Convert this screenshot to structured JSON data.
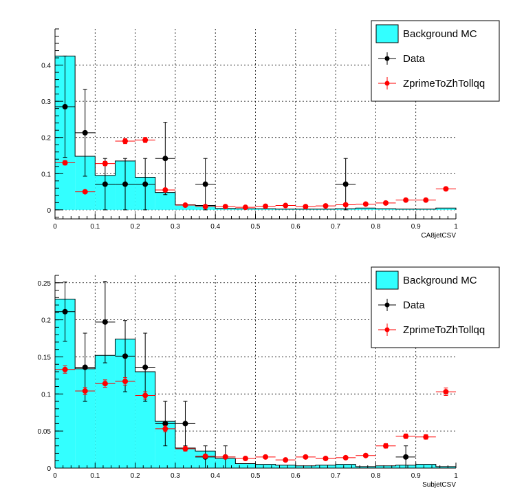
{
  "chart_data": [
    {
      "type": "histogram",
      "xlabel": "CA8jetCSV",
      "ylabel": "",
      "xlim": [
        0,
        1
      ],
      "ylim": [
        -0.025,
        0.5
      ],
      "x_ticks": [
        0,
        0.1,
        0.2,
        0.3,
        0.4,
        0.5,
        0.6,
        0.7,
        0.8,
        0.9,
        1
      ],
      "x_tick_labels": [
        "0",
        "0.1",
        "0.2",
        "0.3",
        "0.4",
        "0.5",
        "0.6",
        "0.7",
        "0.8",
        "0.9",
        "1"
      ],
      "y_ticks": [
        0,
        0.1,
        0.2,
        0.3,
        0.4
      ],
      "y_tick_labels": [
        "0",
        "0.1",
        "0.2",
        "0.3",
        "0.4"
      ],
      "grid": true,
      "legend_position": "top-right",
      "bin_edges": [
        0,
        0.05,
        0.1,
        0.15,
        0.2,
        0.25,
        0.3,
        0.35,
        0.4,
        0.45,
        0.5,
        0.55,
        0.6,
        0.65,
        0.7,
        0.75,
        0.8,
        0.85,
        0.9,
        0.95,
        1.0
      ],
      "series": [
        {
          "name": "Background MC",
          "kind": "filled-histogram",
          "color": "#33ffff",
          "values": [
            0.425,
            0.148,
            0.095,
            0.135,
            0.09,
            0.048,
            0.014,
            0.012,
            0.004,
            0.003,
            0.003,
            0.002,
            0.002,
            0.002,
            0.003,
            0.005,
            0.003,
            0.002,
            0.002,
            0.005
          ]
        },
        {
          "name": "Data",
          "kind": "points",
          "color": "#000000",
          "x": [
            0.025,
            0.075,
            0.125,
            0.175,
            0.225,
            0.275,
            0.375,
            0.725
          ],
          "y": [
            0.285,
            0.213,
            0.071,
            0.071,
            0.071,
            0.142,
            0.071,
            0.071
          ],
          "yerr": [
            0.14,
            0.12,
            0.071,
            0.071,
            0.071,
            0.1,
            0.071,
            0.071
          ]
        },
        {
          "name": "ZprimeToZhTollqq",
          "kind": "points",
          "color": "#ff0000",
          "x": [
            0.025,
            0.075,
            0.125,
            0.175,
            0.225,
            0.275,
            0.325,
            0.375,
            0.425,
            0.475,
            0.525,
            0.575,
            0.625,
            0.675,
            0.725,
            0.775,
            0.825,
            0.875,
            0.925,
            0.975
          ],
          "y": [
            0.13,
            0.05,
            0.128,
            0.19,
            0.193,
            0.055,
            0.013,
            0.009,
            0.009,
            0.007,
            0.01,
            0.012,
            0.009,
            0.011,
            0.014,
            0.016,
            0.019,
            0.027,
            0.027,
            0.058
          ],
          "yerr": [
            0.006,
            0.004,
            0.006,
            0.007,
            0.007,
            0.004,
            0.002,
            0.002,
            0.002,
            0.002,
            0.002,
            0.002,
            0.002,
            0.002,
            0.002,
            0.002,
            0.002,
            0.003,
            0.003,
            0.004
          ]
        }
      ]
    },
    {
      "type": "histogram",
      "xlabel": "SubjetCSV",
      "ylabel": "",
      "xlim": [
        0,
        1
      ],
      "ylim": [
        0,
        0.26
      ],
      "x_ticks": [
        0,
        0.1,
        0.2,
        0.3,
        0.4,
        0.5,
        0.6,
        0.7,
        0.8,
        0.9,
        1
      ],
      "x_tick_labels": [
        "0",
        "0.1",
        "0.2",
        "0.3",
        "0.4",
        "0.5",
        "0.6",
        "0.7",
        "0.8",
        "0.9",
        "1"
      ],
      "y_ticks": [
        0,
        0.05,
        0.1,
        0.15,
        0.2,
        0.25
      ],
      "y_tick_labels": [
        "0",
        "0.05",
        "0.1",
        "0.15",
        "0.2",
        "0.25"
      ],
      "grid": true,
      "legend_position": "top-right",
      "bin_edges": [
        0,
        0.05,
        0.1,
        0.15,
        0.2,
        0.25,
        0.3,
        0.35,
        0.4,
        0.45,
        0.5,
        0.55,
        0.6,
        0.65,
        0.7,
        0.75,
        0.8,
        0.85,
        0.9,
        0.95,
        1.0
      ],
      "series": [
        {
          "name": "Background MC",
          "kind": "filled-histogram",
          "color": "#33ffff",
          "values": [
            0.228,
            0.134,
            0.152,
            0.174,
            0.13,
            0.063,
            0.027,
            0.023,
            0.013,
            0.006,
            0.005,
            0.004,
            0.003,
            0.004,
            0.005,
            0.002,
            0.003,
            0.004,
            0.005,
            0.002
          ]
        },
        {
          "name": "Data",
          "kind": "points",
          "color": "#000000",
          "x": [
            0.025,
            0.075,
            0.125,
            0.175,
            0.225,
            0.275,
            0.325,
            0.375,
            0.425,
            0.875
          ],
          "y": [
            0.211,
            0.136,
            0.197,
            0.151,
            0.136,
            0.06,
            0.06,
            0.015,
            0.015,
            0.015
          ],
          "yerr": [
            0.04,
            0.046,
            0.055,
            0.048,
            0.046,
            0.03,
            0.03,
            0.015,
            0.015,
            0.015
          ]
        },
        {
          "name": "ZprimeToZhTollqq",
          "kind": "points",
          "color": "#ff0000",
          "x": [
            0.025,
            0.075,
            0.125,
            0.175,
            0.225,
            0.275,
            0.325,
            0.375,
            0.425,
            0.475,
            0.525,
            0.575,
            0.625,
            0.675,
            0.725,
            0.775,
            0.825,
            0.875,
            0.925,
            0.975
          ],
          "y": [
            0.133,
            0.104,
            0.114,
            0.117,
            0.098,
            0.053,
            0.026,
            0.016,
            0.015,
            0.013,
            0.015,
            0.011,
            0.015,
            0.013,
            0.014,
            0.017,
            0.03,
            0.043,
            0.042,
            0.103
          ],
          "yerr": [
            0.005,
            0.005,
            0.005,
            0.005,
            0.005,
            0.004,
            0.003,
            0.002,
            0.002,
            0.002,
            0.002,
            0.002,
            0.002,
            0.002,
            0.002,
            0.002,
            0.003,
            0.003,
            0.003,
            0.005
          ]
        }
      ]
    }
  ]
}
